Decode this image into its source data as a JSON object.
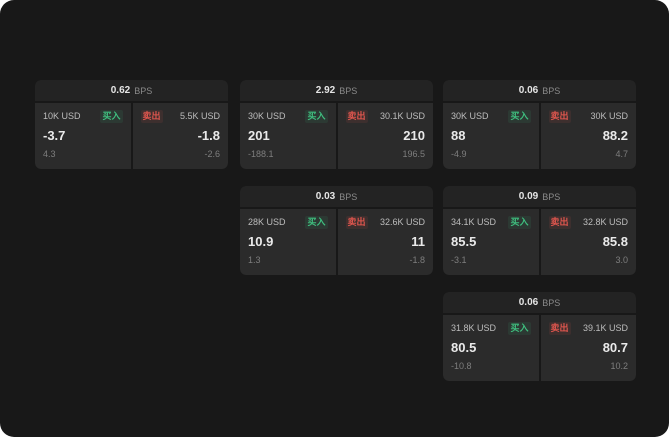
{
  "colors": {
    "buy_accent": "#3fbf7f",
    "sell_accent": "#e0564e",
    "background": "#181818",
    "panel": "#2b2b2b",
    "header": "#232323"
  },
  "cards": [
    {
      "bps_value": "0.62",
      "bps_label": "BPS",
      "buy": {
        "size": "10K USD",
        "label": "买入",
        "price": "-3.7",
        "sub": "4.3"
      },
      "sell": {
        "label": "卖出",
        "size": "5.5K USD",
        "price": "-1.8",
        "sub": "-2.6"
      }
    },
    {
      "bps_value": "2.92",
      "bps_label": "BPS",
      "buy": {
        "size": "30K USD",
        "label": "买入",
        "price": "201",
        "sub": "-188.1"
      },
      "sell": {
        "label": "卖出",
        "size": "30.1K USD",
        "price": "210",
        "sub": "196.5"
      }
    },
    {
      "bps_value": "0.06",
      "bps_label": "BPS",
      "buy": {
        "size": "30K USD",
        "label": "买入",
        "price": "88",
        "sub": "-4.9"
      },
      "sell": {
        "label": "卖出",
        "size": "30K USD",
        "price": "88.2",
        "sub": "4.7"
      }
    },
    {
      "bps_value": "0.03",
      "bps_label": "BPS",
      "buy": {
        "size": "28K USD",
        "label": "买入",
        "price": "10.9",
        "sub": "1.3"
      },
      "sell": {
        "label": "卖出",
        "size": "32.6K USD",
        "price": "11",
        "sub": "-1.8"
      }
    },
    {
      "bps_value": "0.09",
      "bps_label": "BPS",
      "buy": {
        "size": "34.1K USD",
        "label": "买入",
        "price": "85.5",
        "sub": "-3.1"
      },
      "sell": {
        "label": "卖出",
        "size": "32.8K USD",
        "price": "85.8",
        "sub": "3.0"
      }
    },
    {
      "bps_value": "0.06",
      "bps_label": "BPS",
      "buy": {
        "size": "31.8K USD",
        "label": "买入",
        "price": "80.5",
        "sub": "-10.8"
      },
      "sell": {
        "label": "卖出",
        "size": "39.1K USD",
        "price": "80.7",
        "sub": "10.2"
      }
    }
  ]
}
